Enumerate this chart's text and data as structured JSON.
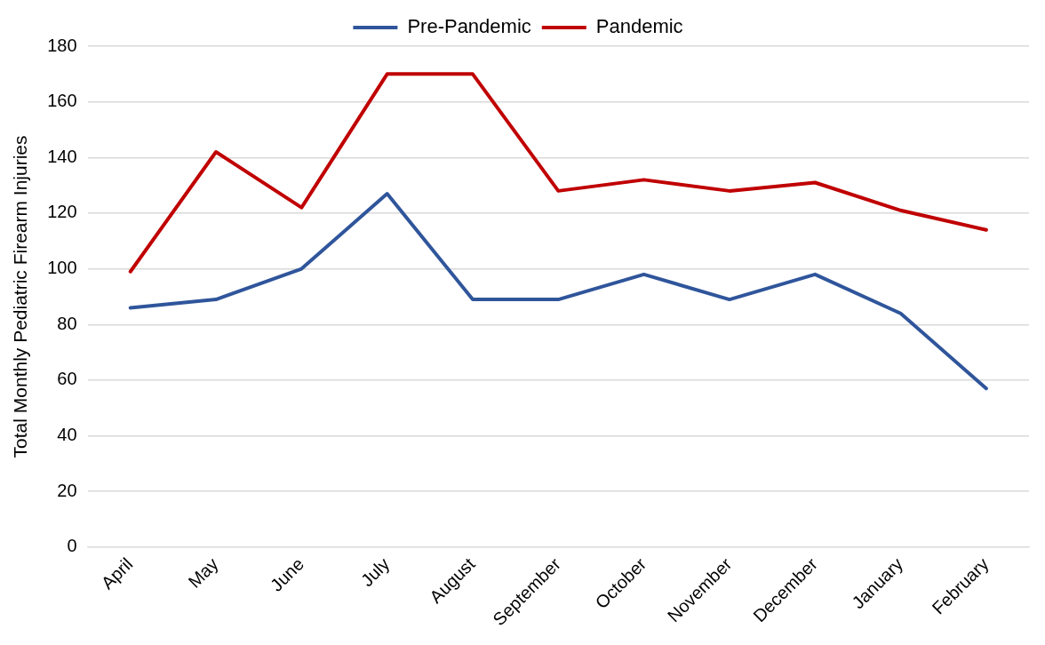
{
  "chart_data": {
    "type": "line",
    "ylabel": "Total Monthly Pediatric Firearm Injuries",
    "categories": [
      "April",
      "May",
      "June",
      "July",
      "August",
      "September",
      "October",
      "November",
      "December",
      "January",
      "February"
    ],
    "series": [
      {
        "name": "Pre-Pandemic",
        "color": "#2f559b",
        "values": [
          86,
          89,
          100,
          127,
          89,
          89,
          98,
          89,
          98,
          84,
          57
        ]
      },
      {
        "name": "Pandemic",
        "color": "#c00000",
        "values": [
          99,
          142,
          122,
          170,
          170,
          128,
          132,
          128,
          131,
          121,
          114
        ]
      }
    ],
    "ylim": [
      0,
      180
    ],
    "yticks": [
      0,
      20,
      40,
      60,
      80,
      100,
      120,
      140,
      160,
      180
    ],
    "grid": "y",
    "legend": "top",
    "marker": "none",
    "line_style": "solid"
  }
}
